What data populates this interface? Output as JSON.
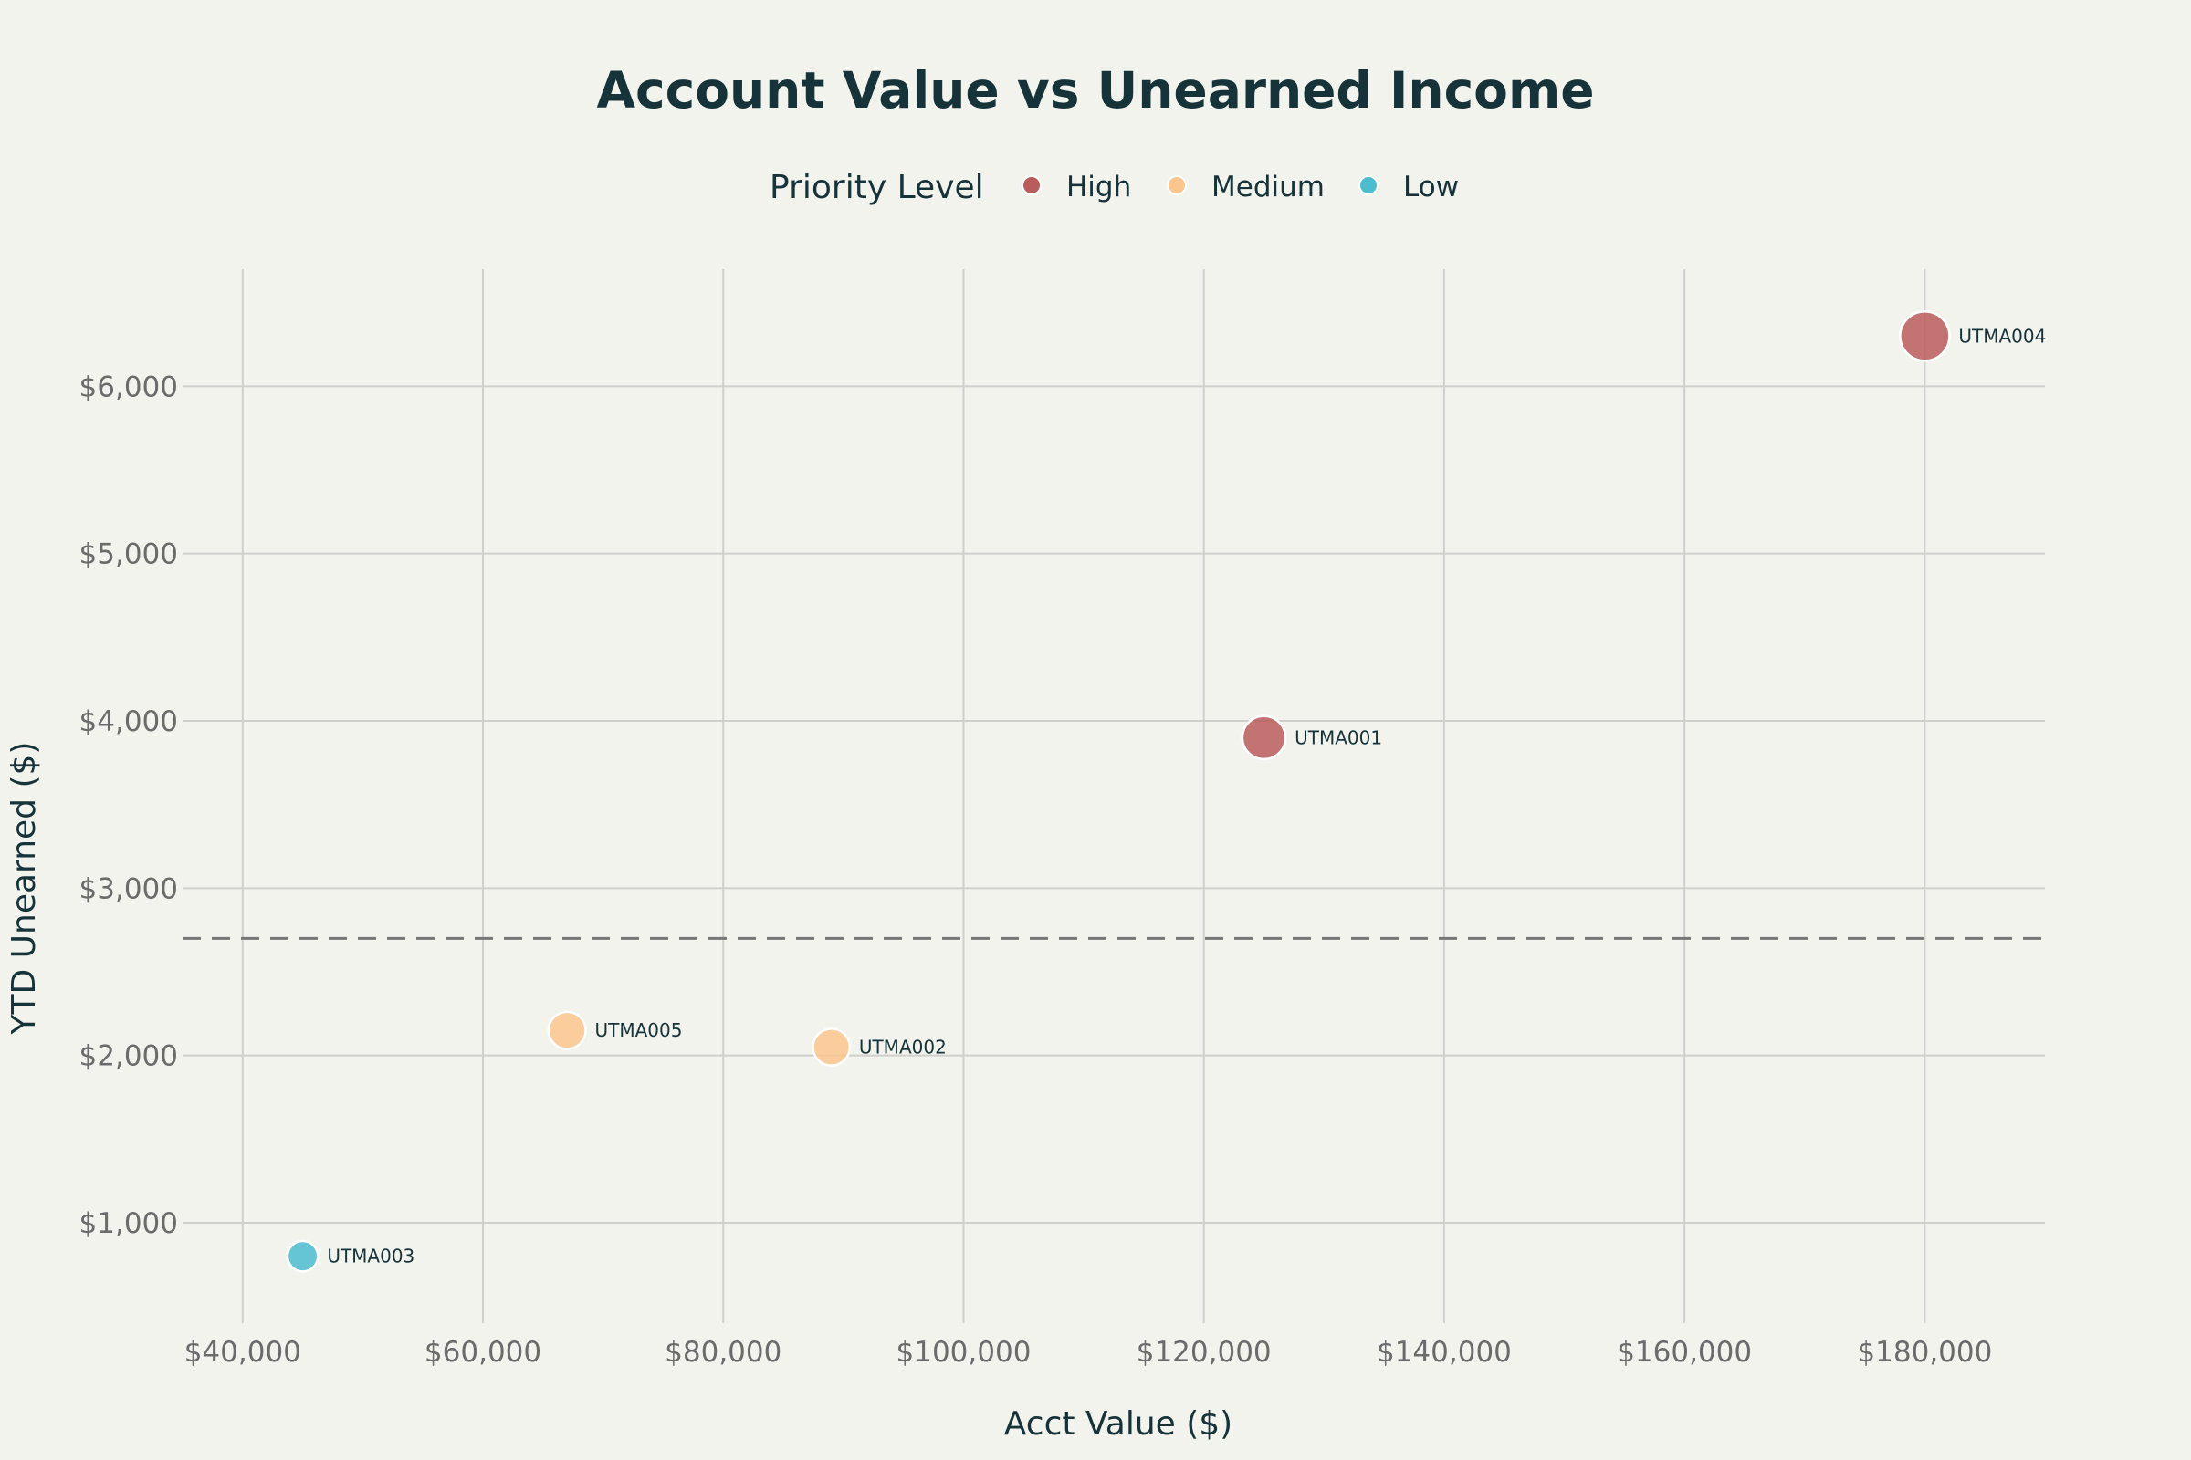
{
  "chart_data": {
    "type": "scatter",
    "title": "Account Value vs Unearned Income",
    "xlabel": "Acct Value ($)",
    "ylabel": "YTD Unearned ($)",
    "xlim": [
      35000,
      190000
    ],
    "ylim": [
      400,
      6700
    ],
    "x_ticks": [
      40000,
      60000,
      80000,
      100000,
      120000,
      140000,
      160000,
      180000
    ],
    "x_tick_labels": [
      "$40,000",
      "$60,000",
      "$80,000",
      "$100,000",
      "$120,000",
      "$140,000",
      "$160,000",
      "$180,000"
    ],
    "y_ticks": [
      1000,
      2000,
      3000,
      4000,
      5000,
      6000
    ],
    "y_tick_labels": [
      "$1,000",
      "$2,000",
      "$3,000",
      "$4,000",
      "$5,000",
      "$6,000"
    ],
    "grid": true,
    "legend": {
      "title": "Priority Level",
      "placement": "top-center"
    },
    "threshold_y": 2700,
    "series": [
      {
        "name": "High",
        "color": "#b85c5c",
        "points": [
          {
            "id": "UTMA001",
            "x": 125000,
            "y": 3900
          },
          {
            "id": "UTMA004",
            "x": 180000,
            "y": 6300
          }
        ]
      },
      {
        "name": "Medium",
        "color": "#fbc58e",
        "points": [
          {
            "id": "UTMA005",
            "x": 67000,
            "y": 2150
          },
          {
            "id": "UTMA002",
            "x": 89000,
            "y": 2050
          }
        ]
      },
      {
        "name": "Low",
        "color": "#4cbccf",
        "points": [
          {
            "id": "UTMA003",
            "x": 45000,
            "y": 800
          }
        ]
      }
    ]
  }
}
